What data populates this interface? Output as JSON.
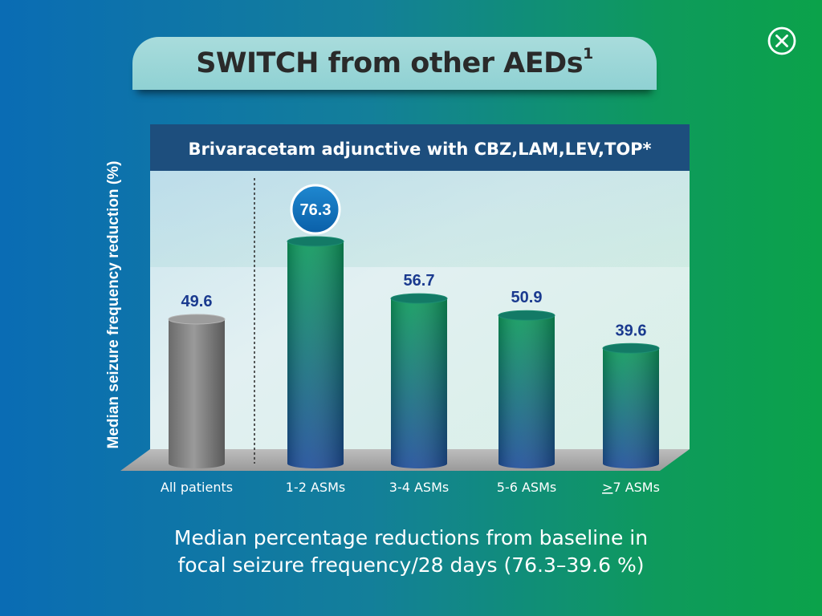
{
  "title": "SWITCH from other AEDs",
  "title_sup": "1",
  "close_icon": "close-circle-icon",
  "colors": {
    "accent_blue": "#1a3a8f",
    "bar_green": "#0e9a5c",
    "bar_blue": "#1f4e9a",
    "bar_grey": "#7a7a7a",
    "highlight_badge": "#0a6cb4"
  },
  "chart_data": {
    "type": "bar",
    "title": "Brivaracetam adjunctive with CBZ,LAM,LEV,TOP*",
    "ylabel": "Median seizure frequency reduction (%)",
    "ylim": [
      0,
      100
    ],
    "categories": [
      "All patients",
      "1-2 ASMs",
      "3-4 ASMs",
      "5-6 ASMs",
      ">7 ASMs"
    ],
    "values": [
      49.6,
      76.3,
      56.7,
      50.9,
      39.6
    ],
    "value_labels": [
      "49.6",
      "76.3",
      "56.7",
      "50.9",
      "39.6"
    ],
    "highlighted_index": 1,
    "grid": false,
    "legend": "none"
  },
  "footnote": {
    "line1": "Median percentage reductions from baseline in",
    "line2": "focal seizure frequency/28 days (76.3–39.6 %)"
  }
}
